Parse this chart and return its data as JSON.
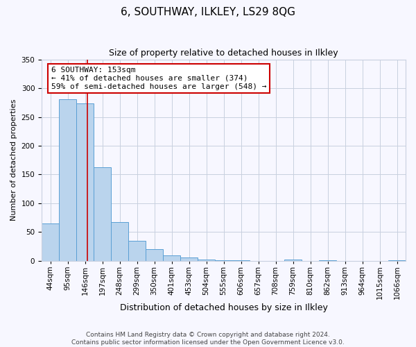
{
  "title": "6, SOUTHWAY, ILKLEY, LS29 8QG",
  "subtitle": "Size of property relative to detached houses in Ilkley",
  "xlabel": "Distribution of detached houses by size in Ilkley",
  "ylabel": "Number of detached properties",
  "bar_values": [
    65,
    281,
    273,
    163,
    67,
    35,
    20,
    9,
    6,
    2,
    1,
    1,
    0,
    0,
    2,
    0,
    1,
    0,
    0,
    0,
    1
  ],
  "bar_labels": [
    "44sqm",
    "95sqm",
    "146sqm",
    "197sqm",
    "248sqm",
    "299sqm",
    "350sqm",
    "401sqm",
    "453sqm",
    "504sqm",
    "555sqm",
    "606sqm",
    "657sqm",
    "708sqm",
    "759sqm",
    "810sqm",
    "862sqm",
    "913sqm",
    "964sqm",
    "1015sqm",
    "1066sqm"
  ],
  "bar_color": "#bad4ed",
  "bar_edge_color": "#5a9fd4",
  "vline_color": "#cc0000",
  "vline_bin": 2,
  "annotation_line1": "6 SOUTHWAY: 153sqm",
  "annotation_line2": "← 41% of detached houses are smaller (374)",
  "annotation_line3": "59% of semi-detached houses are larger (548) →",
  "annotation_box_color": "#cc0000",
  "ylim": [
    0,
    350
  ],
  "yticks": [
    0,
    50,
    100,
    150,
    200,
    250,
    300,
    350
  ],
  "footer_line1": "Contains HM Land Registry data © Crown copyright and database right 2024.",
  "footer_line2": "Contains public sector information licensed under the Open Government Licence v3.0.",
  "background_color": "#f7f7ff",
  "grid_color": "#c8d0df",
  "title_fontsize": 11,
  "subtitle_fontsize": 9,
  "annot_fontsize": 8,
  "xlabel_fontsize": 9,
  "ylabel_fontsize": 8,
  "tick_fontsize": 7.5,
  "footer_fontsize": 6.5
}
